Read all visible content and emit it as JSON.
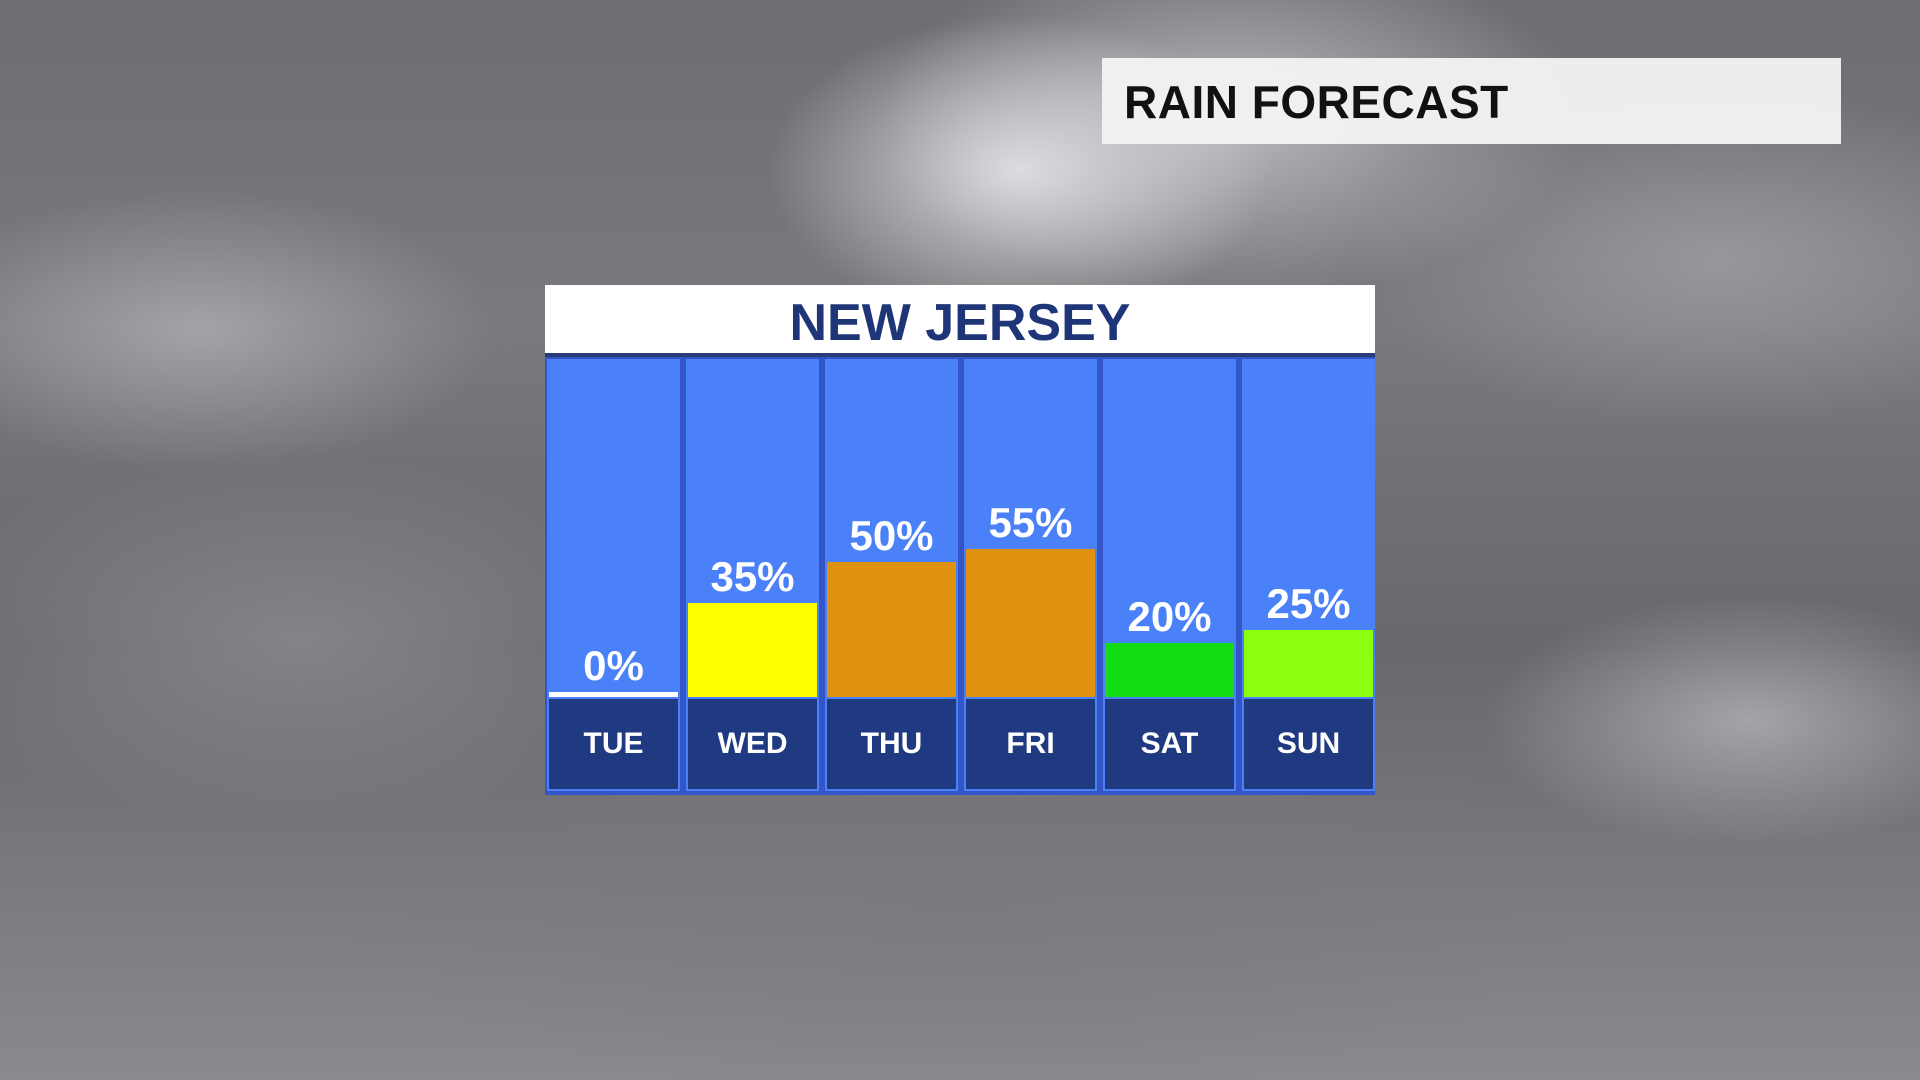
{
  "header": {
    "title": "RAIN FORECAST"
  },
  "chart_data": {
    "type": "bar",
    "title": "NEW JERSEY",
    "categories": [
      "TUE",
      "WED",
      "THU",
      "FRI",
      "SAT",
      "SUN"
    ],
    "values": [
      0,
      35,
      50,
      55,
      20,
      25
    ],
    "value_labels": [
      "0%",
      "35%",
      "50%",
      "55%",
      "20%",
      "25%"
    ],
    "bar_colors": [
      "#ffffff",
      "#ffff00",
      "#de9210",
      "#de9210",
      "#12dc12",
      "#8cff10"
    ],
    "ylim": [
      0,
      100
    ],
    "grid": false,
    "legend": "none"
  }
}
